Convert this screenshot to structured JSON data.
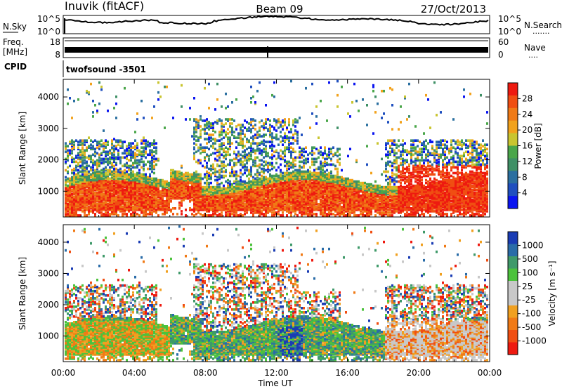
{
  "header": {
    "station": "Inuvik (fitACF)",
    "beam": "Beam 09",
    "date": "27/Oct/2013"
  },
  "sky_panel": {
    "label": "N.Sky",
    "left_ticks": [
      "10^5",
      "10^0"
    ],
    "right_ticks": [
      "10^5",
      "10^0"
    ],
    "right_label": "N.Search",
    "right_legend": "......."
  },
  "freq_panel": {
    "label_line1": "Freq.",
    "label_line2": "[MHz]",
    "left_ticks": [
      "18",
      "8"
    ],
    "right_ticks": [
      "60",
      "0"
    ],
    "right_label": "Nave",
    "right_legend": "...."
  },
  "cpid": {
    "label": "CPID",
    "value": "twofsound -3501"
  },
  "chart_data": [
    {
      "type": "heatmap",
      "name": "power",
      "ylabel": "Slant Range [km]",
      "yticks": [
        "1000",
        "2000",
        "3000",
        "4000"
      ],
      "xticks": [
        "00:00",
        "04:00",
        "08:00",
        "12:00",
        "16:00",
        "20:00",
        "00:00"
      ],
      "colorbar": {
        "label": "Power [dB]",
        "ticks": [
          "4",
          "8",
          "12",
          "16",
          "20",
          "24",
          "28"
        ],
        "colors": [
          "#0a14f0",
          "#1f4fbf",
          "#2a6fa0",
          "#3f9066",
          "#4aa64a",
          "#c9c530",
          "#f2a21c",
          "#f07a16",
          "#f04e12",
          "#ee1a10"
        ]
      }
    },
    {
      "type": "heatmap",
      "name": "velocity",
      "ylabel": "Slant Range [km]",
      "yticks": [
        "1000",
        "2000",
        "3000",
        "4000"
      ],
      "xticks": [
        "00:00",
        "04:00",
        "08:00",
        "12:00",
        "16:00",
        "20:00",
        "00:00"
      ],
      "xlabel": "Time UT",
      "colorbar": {
        "label": "Velocity [m s⁻¹]",
        "ticks": [
          "1000",
          "500",
          "100",
          "25",
          "-25",
          "-100",
          "-500",
          "-1000"
        ],
        "colors": [
          "#1a3cb4",
          "#2a6ca8",
          "#3f9a6a",
          "#4cc23c",
          "#c8c8c8",
          "#c8c8c8",
          "#f0a020",
          "#f07a16",
          "#f04e12",
          "#ee1a10"
        ]
      }
    }
  ]
}
